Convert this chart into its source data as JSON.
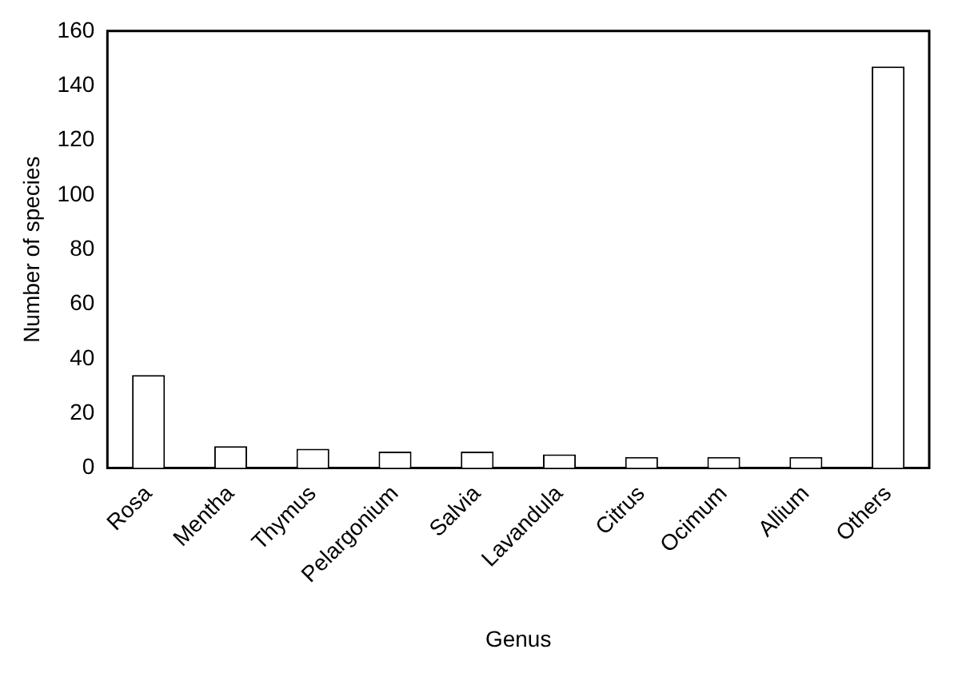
{
  "chart_data": {
    "type": "bar",
    "xlabel": "Genus",
    "ylabel": "Number of species",
    "categories": [
      "Rosa",
      "Mentha",
      "Thymus",
      "Pelargonium",
      "Salvia",
      "Lavandula",
      "Citrus",
      "Ocimum",
      "Allium",
      "Others"
    ],
    "values": [
      34,
      8,
      7,
      6,
      6,
      5,
      4,
      4,
      4,
      147
    ],
    "color": "#ffffff",
    "ylim": [
      0,
      160
    ],
    "yticks": [
      0,
      20,
      40,
      60,
      80,
      100,
      120,
      140,
      160
    ],
    "grid": false,
    "legend": false
  }
}
